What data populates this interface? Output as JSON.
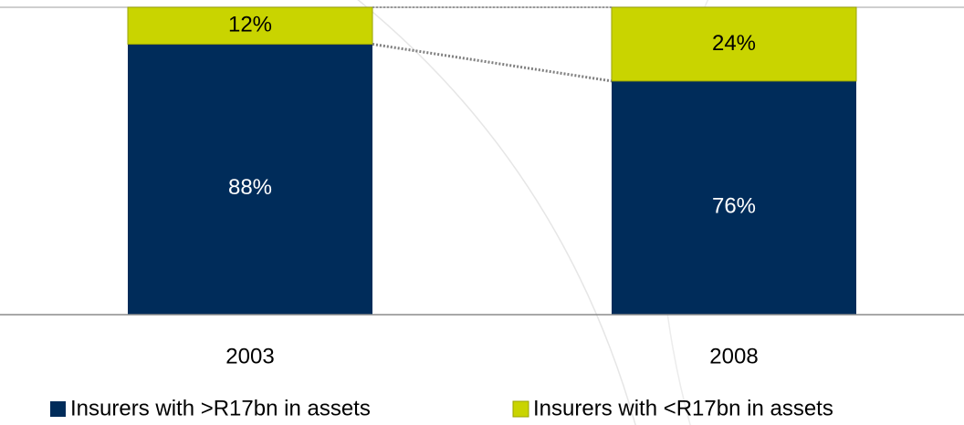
{
  "chart_data": {
    "type": "stacked_bar",
    "categories": [
      "2003",
      "2008"
    ],
    "series": [
      {
        "name": "Insurers with >R17bn in assets",
        "color": "#002c5a",
        "values": [
          88,
          76
        ],
        "value_labels": [
          "88%",
          "76%"
        ]
      },
      {
        "name": "Insurers with <R17bn in assets",
        "color": "#c9d400",
        "values": [
          12,
          24
        ],
        "value_labels": [
          "12%",
          "24%"
        ]
      }
    ],
    "ylim": [
      0,
      100
    ]
  }
}
